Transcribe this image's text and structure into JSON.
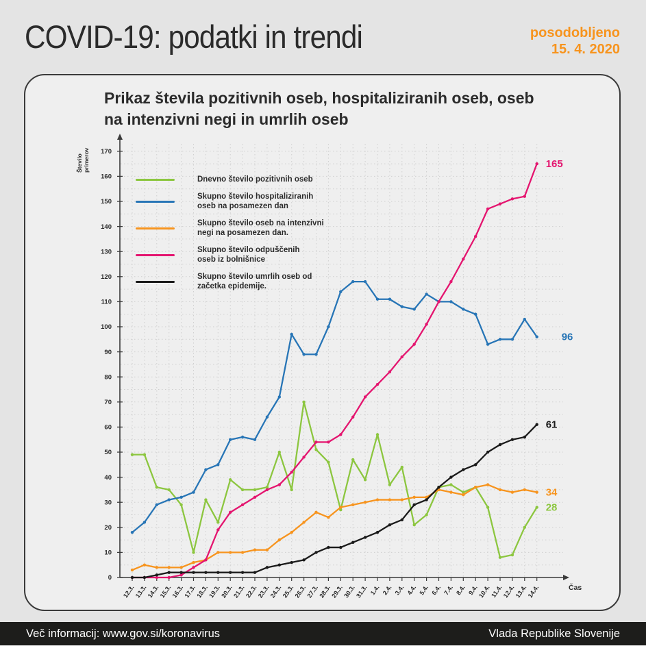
{
  "header": {
    "title": "COVID-19: podatki in trendi",
    "updated_line1": "posodobljeno",
    "updated_line2": "15. 4. 2020"
  },
  "chart_header": {
    "title_line1": "Prikaz števila pozitivnih oseb, hospitaliziranih oseb, oseb",
    "title_line2": "na intenzivni negi in umrlih oseb"
  },
  "footer": {
    "left": "Več informacij: www.gov.si/koronavirus",
    "right": "Vlada Republike Slovenije"
  },
  "colors": {
    "accent_orange": "#F7941E",
    "series_green": "#8CC63F",
    "series_blue": "#2775B6",
    "series_orange": "#F7941E",
    "series_pink": "#E4156F",
    "series_black": "#1A1A1A",
    "page_bg": "#E4E4E4",
    "card_bg": "#EFEFEF",
    "footer_bg": "#1D1D1B",
    "text_dark": "#2B2B2B",
    "grid": "#CFCFCF",
    "axis": "#3A3A3A"
  },
  "legend": {
    "items": [
      {
        "key": "positive",
        "color": "#8CC63F",
        "lines": [
          "Dnevno število pozitivnih oseb"
        ]
      },
      {
        "key": "hospitalized",
        "color": "#2775B6",
        "lines": [
          "Skupno število hospitaliziranih",
          "oseb na posamezen dan"
        ]
      },
      {
        "key": "icu",
        "color": "#F7941E",
        "lines": [
          "Skupno število oseb na intenzivni",
          "negi na posamezen dan."
        ]
      },
      {
        "key": "discharged",
        "color": "#E4156F",
        "lines": [
          "Skupno število odpuščenih",
          "oseb iz bolnišnice"
        ]
      },
      {
        "key": "deaths",
        "color": "#1A1A1A",
        "lines": [
          "Skupno število umrlih oseb od",
          "začetka epidemije."
        ]
      }
    ]
  },
  "chart_data": {
    "type": "line",
    "title": "Prikaz števila pozitivnih oseb, hospitaliziranih oseb, oseb na intenzivni negi in umrlih oseb",
    "xlabel": "Čas",
    "ylabel_lines": [
      "Število",
      "primerov"
    ],
    "ylim": [
      0,
      170
    ],
    "ytick_step": 10,
    "grid": true,
    "legend_position": "upper-left",
    "categories": [
      "12.3.",
      "13.3.",
      "14.3.",
      "15.3.",
      "16.3.",
      "17.3.",
      "18.3.",
      "19.3.",
      "20.3.",
      "21.3.",
      "22.3.",
      "23.3.",
      "24.3.",
      "25.3.",
      "26.3.",
      "27.3.",
      "28.3.",
      "29.3.",
      "30.3.",
      "31.3.",
      "1.4.",
      "2.4.",
      "3.4.",
      "4.4.",
      "5.4.",
      "6.4.",
      "7.4.",
      "8.4.",
      "9.4.",
      "10.4.",
      "11.4.",
      "12.4.",
      "13.4.",
      "14.4."
    ],
    "series": [
      {
        "key": "positive",
        "name": "Dnevno število pozitivnih oseb",
        "color": "#8CC63F",
        "end_label": "28",
        "values": [
          49,
          49,
          36,
          35,
          29,
          10,
          31,
          22,
          39,
          35,
          35,
          36,
          50,
          35,
          70,
          51,
          46,
          27,
          47,
          39,
          57,
          37,
          44,
          21,
          25,
          36,
          37,
          34,
          36,
          28,
          8,
          9,
          20,
          28
        ]
      },
      {
        "key": "hospitalized",
        "name": "Skupno število hospitaliziranih oseb na posamezen dan",
        "color": "#2775B6",
        "end_label": "96",
        "values": [
          18,
          22,
          29,
          31,
          32,
          34,
          43,
          45,
          55,
          56,
          55,
          64,
          72,
          97,
          89,
          89,
          100,
          114,
          118,
          118,
          111,
          111,
          108,
          107,
          113,
          110,
          110,
          107,
          105,
          93,
          95,
          95,
          103,
          96
        ]
      },
      {
        "key": "icu",
        "name": "Skupno število oseb na intenzivni negi na posamezen dan.",
        "color": "#F7941E",
        "end_label": "34",
        "values": [
          3,
          5,
          4,
          4,
          4,
          6,
          7,
          10,
          10,
          10,
          11,
          11,
          15,
          18,
          22,
          26,
          24,
          28,
          29,
          30,
          31,
          31,
          31,
          32,
          32,
          35,
          34,
          33,
          36,
          37,
          35,
          34,
          35,
          34
        ]
      },
      {
        "key": "discharged",
        "name": "Skupno število odpuščenih oseb iz bolnišnice",
        "color": "#E4156F",
        "end_label": "165",
        "values": [
          0,
          0,
          0,
          0,
          1,
          4,
          7,
          19,
          26,
          29,
          32,
          35,
          37,
          42,
          48,
          54,
          54,
          57,
          64,
          72,
          77,
          82,
          88,
          93,
          101,
          110,
          118,
          127,
          136,
          147,
          149,
          151,
          152,
          165
        ]
      },
      {
        "key": "deaths",
        "name": "Skupno število umrlih oseb od začetka epidemije.",
        "color": "#1A1A1A",
        "end_label": "61",
        "values": [
          0,
          0,
          1,
          2,
          2,
          2,
          2,
          2,
          2,
          2,
          2,
          4,
          5,
          6,
          7,
          10,
          12,
          12,
          14,
          16,
          18,
          21,
          23,
          29,
          31,
          36,
          40,
          43,
          45,
          50,
          53,
          55,
          56,
          61
        ]
      }
    ]
  }
}
